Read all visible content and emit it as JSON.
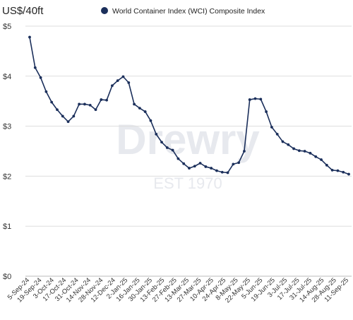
{
  "chart_data": {
    "type": "line",
    "title": "",
    "ylabel": "US$/40ft",
    "xlabel": "",
    "legend": {
      "placement": "top",
      "entries": [
        "World Container Index (WCI) Composite Index"
      ]
    },
    "watermark": {
      "brand": "Drewry",
      "tagline": "EST 1970"
    },
    "ylim": [
      0,
      5
    ],
    "yticks": [
      {
        "value": 0,
        "label": "$0"
      },
      {
        "value": 1,
        "label": "$1"
      },
      {
        "value": 2,
        "label": "$2"
      },
      {
        "value": 3,
        "label": "$3"
      },
      {
        "value": 4,
        "label": "$4"
      },
      {
        "value": 5,
        "label": "$5"
      }
    ],
    "grid": "horizontal",
    "colors": {
      "series": "#1b2f5b",
      "grid": "#dddddd",
      "watermark": "#e7e9ee"
    },
    "xtick_labels": [
      "5-Sep-24",
      "19-Sep-24",
      "3-Oct-24",
      "17-Oct-24",
      "31-Oct-24",
      "14-Nov-24",
      "28-Nov-24",
      "12-Dec-24",
      "2-Jan-25",
      "16-Jan-25",
      "30-Jan-25",
      "13-Feb-25",
      "27-Feb-25",
      "13-Mar-25",
      "27-Mar-25",
      "10-Apr-25",
      "24-Apr-25",
      "8-May-25",
      "22-May-25",
      "5-Jun-25",
      "19-Jun-25",
      "3-Jul-25",
      "17-Jul-25",
      "31-Jul-25",
      "14-Aug-25",
      "28-Aug-25",
      "11-Sep-25"
    ],
    "series": [
      {
        "name": "World Container Index (WCI) Composite Index",
        "values": [
          4.78,
          4.17,
          3.97,
          3.69,
          3.48,
          3.33,
          3.2,
          3.09,
          3.2,
          3.44,
          3.44,
          3.42,
          3.33,
          3.53,
          3.52,
          3.81,
          3.91,
          3.99,
          3.87,
          3.44,
          3.36,
          3.29,
          3.11,
          2.84,
          2.68,
          2.57,
          2.52,
          2.35,
          2.25,
          2.16,
          2.2,
          2.26,
          2.19,
          2.16,
          2.11,
          2.08,
          2.07,
          2.24,
          2.27,
          2.5,
          3.53,
          3.55,
          3.54,
          3.29,
          2.98,
          2.84,
          2.69,
          2.63,
          2.55,
          2.51,
          2.5,
          2.46,
          2.39,
          2.33,
          2.22,
          2.12,
          2.11,
          2.08,
          2.04
        ]
      }
    ]
  }
}
